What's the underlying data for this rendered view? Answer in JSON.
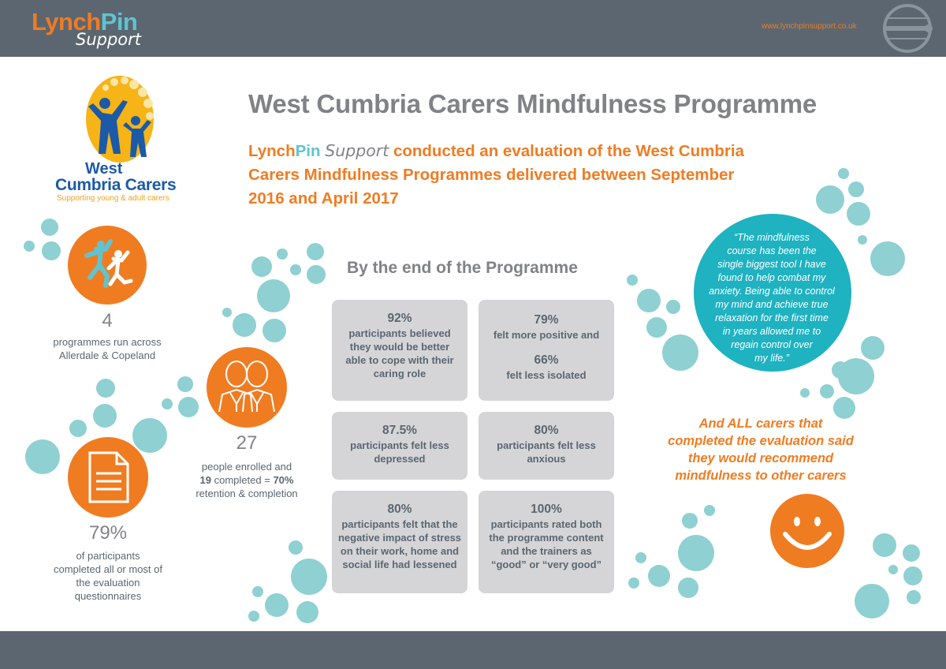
{
  "header": {
    "brand_lynch": "Lynch",
    "brand_pin": "Pin",
    "brand_support": "Support",
    "website": "www.lynchpinsupport.co.uk"
  },
  "partner_logo": {
    "line1": "West",
    "line2": "Cumbria Carers",
    "tagline": "Supporting young & adult carers"
  },
  "title": "West Cumbria Carers Mindfulness Programme",
  "subtitle": {
    "lynch": "Lynch",
    "pin": "Pin",
    "support": "Support",
    "line1_rest": "conducted an evaluation of the West Cumbria",
    "line2": "Carers Mindfulness Programmes delivered between September",
    "line3": "2016 and April 2017"
  },
  "stats": {
    "programmes": {
      "value": "4",
      "line1": "programmes run across",
      "line2": "Allerdale & Copeland"
    },
    "enrolled": {
      "value": "27",
      "line1": "people enrolled and",
      "completed_num": "19",
      "completed_text": "completed =",
      "retention_pct": "70%",
      "line3": "retention & completion"
    },
    "questionnaires": {
      "value": "79%",
      "line1": "of participants",
      "line2": "completed all or most of",
      "line3": "the evaluation",
      "line4": "questionnaires"
    }
  },
  "section_title": "By the end of the Programme",
  "cards": [
    {
      "pct": "92%",
      "lines": [
        "participants believed",
        "they would be better",
        "able to cope with their",
        "caring role"
      ]
    },
    {
      "pct": "79%",
      "line1": "felt more positive and",
      "pct2": "66%",
      "line2": "felt less isolated"
    },
    {
      "pct": "87.5%",
      "lines": [
        "participants felt less",
        "depressed"
      ]
    },
    {
      "pct": "80%",
      "lines": [
        "participants felt less",
        "anxious"
      ]
    },
    {
      "pct": "80%",
      "lines": [
        "participants felt that the",
        "negative impact of stress",
        "on their work, home and",
        "social life had lessened"
      ]
    },
    {
      "pct": "100%",
      "lines": [
        "participants rated both",
        "the programme content",
        "and the trainers as",
        "“good” or “very good”"
      ]
    }
  ],
  "quote": {
    "lines": [
      "“The mindfulness",
      "course has been the",
      "single biggest tool I have",
      "found to help combat my",
      "anxiety. Being able to control",
      "my mind and achieve true",
      "relaxation for the first time",
      "in years allowed me to",
      "regain control over",
      "my life.”"
    ]
  },
  "recommend": {
    "lines": [
      "And ALL carers that",
      "completed the evaluation said",
      "they would recommend",
      "mindfulness to other carers"
    ]
  },
  "colors": {
    "orange": "#f07c22",
    "teal": "#1fb2c1",
    "bubble": "#8fd0d2",
    "slate": "#5b6670",
    "grey_text": "#808286",
    "card_bg": "#d5d5d8",
    "navy": "#1c5aa8"
  },
  "icons": {
    "programmes": "jumping-people-icon",
    "enrolled": "two-people-icon",
    "questionnaires": "document-icon",
    "smiley": "smiley-face-icon"
  }
}
